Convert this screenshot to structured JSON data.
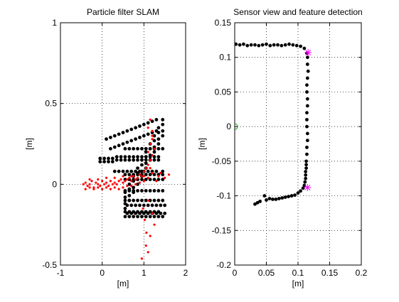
{
  "figure": {
    "background": "#ffffff"
  },
  "chart_data": [
    {
      "type": "scatter",
      "title": "Particle filter SLAM",
      "xlabel": "[m]",
      "ylabel": "[m]",
      "xlim": [
        -1,
        2
      ],
      "ylim": [
        -0.5,
        1
      ],
      "xticks": [
        -1,
        0,
        1,
        2
      ],
      "xtick_labels": [
        "-1",
        "0",
        "1",
        "2"
      ],
      "yticks": [
        -0.5,
        0,
        0.5,
        1
      ],
      "ytick_labels": [
        "-0.5",
        "0",
        "0.5",
        "1"
      ],
      "grid": true,
      "series": [
        {
          "kind": "map-points",
          "color": "#000000",
          "marker": "dot",
          "x": [
            -0.05,
            0.05,
            0.15,
            0.25,
            0.35,
            0.45,
            0.55,
            0.65,
            0.75,
            0.85,
            0.95,
            1.05,
            1.15,
            1.25,
            1.35,
            -0.05,
            0.05,
            0.15,
            0.25,
            0.35,
            0.45,
            0.55,
            0.65,
            0.75,
            0.85,
            0.95,
            1.05,
            1.15,
            1.25,
            1.35,
            0.1,
            0.2,
            0.3,
            0.4,
            0.5,
            0.6,
            0.7,
            0.8,
            0.9,
            1.0,
            1.1,
            1.2,
            1.3,
            0.2,
            0.3,
            0.4,
            0.5,
            0.6,
            0.7,
            0.8,
            0.9,
            1.0,
            1.1,
            1.2,
            1.3,
            0.3,
            0.4,
            0.5,
            0.6,
            0.7,
            0.8,
            0.9,
            1.0,
            1.1,
            1.2,
            1.3,
            1.45,
            0.55,
            0.65,
            0.75,
            0.85,
            0.95,
            1.05,
            1.15,
            1.25,
            1.35,
            1.45,
            0.55,
            0.65,
            0.75,
            0.85,
            0.95,
            1.05,
            1.15,
            1.25,
            1.35,
            0.6,
            0.7,
            0.8,
            0.9,
            1.0,
            1.1,
            1.2,
            1.3,
            1.4,
            1.5,
            0.6,
            0.7,
            0.8,
            0.9,
            1.0,
            1.1,
            1.2,
            1.3,
            1.4,
            1.5,
            0.55,
            0.65,
            0.75,
            0.85,
            0.95,
            1.05,
            1.15,
            1.25,
            1.35,
            1.45,
            0.55,
            0.65,
            0.75,
            0.85,
            0.95,
            1.05,
            1.15,
            1.25,
            1.35,
            1.45,
            0.55,
            0.65,
            0.75,
            0.85,
            0.95,
            1.05,
            1.15,
            1.25,
            1.35,
            1.45,
            0.55,
            0.65,
            0.75,
            0.85,
            0.95,
            1.05,
            1.15,
            1.25,
            1.35,
            1.45,
            0.55,
            0.65,
            0.75,
            0.85,
            0.95,
            1.05,
            1.15,
            1.25,
            1.35,
            1.45,
            0.55,
            0.65,
            0.75,
            0.85,
            0.95,
            1.05,
            1.15,
            1.25,
            1.35,
            1.45,
            0.55,
            0.65,
            0.75,
            0.85,
            0.95,
            1.05,
            1.15,
            1.25,
            1.35,
            1.45,
            0.55,
            0.65,
            0.75,
            0.85,
            0.95,
            1.05,
            1.15,
            1.25,
            1.35,
            1.45,
            0.55,
            0.65,
            0.75,
            0.85,
            0.95,
            1.05,
            1.15,
            1.25,
            1.35,
            1.45
          ],
          "y": [
            0.16,
            0.16,
            0.16,
            0.16,
            0.17,
            0.17,
            0.17,
            0.17,
            0.17,
            0.17,
            0.17,
            0.17,
            0.17,
            0.17,
            0.17,
            0.14,
            0.14,
            0.14,
            0.14,
            0.15,
            0.15,
            0.15,
            0.15,
            0.15,
            0.15,
            0.15,
            0.15,
            0.15,
            0.15,
            0.15,
            0.28,
            0.29,
            0.3,
            0.31,
            0.32,
            0.33,
            0.34,
            0.35,
            0.36,
            0.37,
            0.38,
            0.39,
            0.4,
            0.22,
            0.23,
            0.24,
            0.25,
            0.26,
            0.27,
            0.28,
            0.29,
            0.3,
            0.31,
            0.32,
            0.33,
            0.08,
            0.08,
            0.08,
            0.08,
            0.08,
            0.08,
            0.08,
            0.08,
            0.08,
            0.08,
            0.08,
            0.08,
            -0.1,
            -0.1,
            -0.1,
            -0.1,
            -0.1,
            -0.1,
            -0.1,
            -0.1,
            -0.1,
            -0.1,
            -0.17,
            -0.17,
            -0.17,
            -0.17,
            -0.17,
            -0.17,
            -0.17,
            -0.17,
            -0.17,
            -0.13,
            -0.13,
            -0.13,
            -0.13,
            -0.13,
            -0.13,
            -0.13,
            -0.13,
            -0.13,
            -0.13,
            -0.18,
            -0.18,
            -0.18,
            -0.18,
            -0.18,
            -0.18,
            -0.18,
            -0.18,
            -0.18,
            -0.18,
            -0.05,
            0.0,
            0.05,
            0.1,
            0.15,
            0.2,
            0.25,
            0.3,
            0.35,
            0.4,
            -0.08,
            -0.03,
            0.02,
            0.07,
            0.12,
            0.17,
            0.22,
            0.27,
            0.32,
            0.37,
            -0.12,
            -0.07,
            -0.02,
            0.03,
            0.08,
            0.13,
            0.18,
            0.23,
            0.28,
            0.33,
            -0.15,
            -0.1,
            -0.05,
            0.0,
            0.05,
            0.1,
            0.15,
            0.2,
            0.25,
            0.3,
            0.03,
            0.03,
            0.03,
            0.03,
            0.03,
            0.03,
            0.03,
            0.03,
            0.03,
            0.03,
            0.06,
            0.06,
            0.06,
            0.06,
            0.06,
            0.06,
            0.06,
            0.06,
            0.06,
            0.06,
            -0.04,
            -0.04,
            -0.04,
            -0.04,
            -0.04,
            -0.04,
            -0.04,
            -0.04,
            -0.04,
            -0.04,
            0.22,
            0.22,
            0.22,
            0.22,
            0.22,
            0.22,
            0.22,
            0.22,
            0.22,
            0.22,
            -0.2,
            -0.2,
            -0.2,
            -0.2,
            -0.2,
            -0.2,
            -0.2,
            -0.2,
            -0.2,
            -0.2
          ]
        },
        {
          "kind": "particles",
          "color": "#ff0000",
          "marker": "dot",
          "x": [
            -0.45,
            -0.4,
            -0.35,
            -0.3,
            -0.25,
            -0.2,
            -0.15,
            -0.1,
            -0.05,
            0.0,
            0.05,
            0.1,
            0.15,
            0.2,
            0.25,
            0.3,
            0.35,
            0.4,
            0.45,
            0.5,
            0.55,
            0.6,
            0.65,
            0.7,
            0.75,
            0.8,
            0.85,
            0.9,
            0.95,
            1.0,
            1.05,
            1.1,
            1.15,
            1.2,
            -0.4,
            -0.3,
            -0.2,
            -0.1,
            0.0,
            0.1,
            0.2,
            0.3,
            0.4,
            0.5,
            0.6,
            0.7,
            0.8,
            0.9,
            1.0,
            1.1,
            1.2,
            -0.3,
            -0.1,
            0.1,
            0.3,
            0.5,
            0.7,
            0.9,
            1.1,
            1.15,
            1.2,
            1.1,
            1.15,
            1.2,
            1.25,
            1.15,
            1.2,
            1.1,
            1.2,
            1.25,
            1.15,
            1.05,
            1.1,
            0.95,
            1.0,
            1.3,
            1.35,
            1.4,
            1.5,
            1.6,
            0.98,
            1.02,
            1.06
          ],
          "y": [
            0.0,
            0.01,
            -0.01,
            0.0,
            0.02,
            -0.02,
            0.01,
            0.0,
            -0.01,
            0.02,
            0.0,
            0.01,
            -0.01,
            0.02,
            0.0,
            0.01,
            0.0,
            0.02,
            0.03,
            0.01,
            0.02,
            0.03,
            0.04,
            0.02,
            0.05,
            0.03,
            0.04,
            0.06,
            0.05,
            0.08,
            0.1,
            0.12,
            0.15,
            0.18,
            -0.03,
            -0.02,
            -0.03,
            -0.02,
            -0.03,
            -0.02,
            -0.03,
            -0.02,
            -0.03,
            -0.02,
            -0.01,
            -0.01,
            0.0,
            0.01,
            0.02,
            0.04,
            0.07,
            0.03,
            0.03,
            0.04,
            0.04,
            0.05,
            0.05,
            0.06,
            0.2,
            0.25,
            0.3,
            0.35,
            0.4,
            0.28,
            0.22,
            0.1,
            0.33,
            -0.1,
            -0.18,
            -0.25,
            -0.32,
            -0.38,
            -0.42,
            -0.46,
            0.05,
            0.02,
            0.05,
            0.07,
            0.04,
            0.06,
            -0.15,
            -0.22,
            -0.3
          ]
        }
      ]
    },
    {
      "type": "scatter",
      "title": "Sensor view and feature detection",
      "xlabel": "[m]",
      "ylabel": "[m]",
      "xlim": [
        0,
        0.2
      ],
      "ylim": [
        -0.2,
        0.15
      ],
      "xticks": [
        0,
        0.05,
        0.1,
        0.15,
        0.2
      ],
      "xtick_labels": [
        "0",
        "0.05",
        "0.1",
        "0.15",
        "0.2"
      ],
      "yticks": [
        -0.2,
        -0.15,
        -0.1,
        -0.05,
        0,
        0.05,
        0.1,
        0.15
      ],
      "ytick_labels": [
        "-0.2",
        "-0.15",
        "-0.1",
        "-0.05",
        "0",
        "0.05",
        "0.1",
        "0.15"
      ],
      "grid": true,
      "series": [
        {
          "kind": "scan-points",
          "color": "#000000",
          "marker": "dot",
          "x": [
            0.002,
            0.008,
            0.014,
            0.02,
            0.026,
            0.032,
            0.038,
            0.044,
            0.05,
            0.056,
            0.062,
            0.068,
            0.074,
            0.08,
            0.086,
            0.092,
            0.098,
            0.104,
            0.11,
            0.114,
            0.115,
            0.115,
            0.116,
            0.115,
            0.114,
            0.114,
            0.115,
            0.115,
            0.114,
            0.114,
            0.114,
            0.115,
            0.115,
            0.114,
            0.114,
            0.113,
            0.113,
            0.113,
            0.112,
            0.112,
            0.112,
            0.111,
            0.11,
            0.108,
            0.104,
            0.1,
            0.095,
            0.09,
            0.085,
            0.08,
            0.075,
            0.07,
            0.065,
            0.06,
            0.055,
            0.05,
            0.047,
            0.04,
            0.036,
            0.032
          ],
          "y": [
            0.119,
            0.118,
            0.119,
            0.117,
            0.118,
            0.118,
            0.117,
            0.118,
            0.119,
            0.117,
            0.118,
            0.118,
            0.117,
            0.118,
            0.119,
            0.118,
            0.117,
            0.116,
            0.113,
            0.106,
            0.1,
            0.09,
            0.08,
            0.07,
            0.06,
            0.05,
            0.04,
            0.03,
            0.02,
            0.01,
            0.0,
            -0.01,
            -0.02,
            -0.03,
            -0.04,
            -0.05,
            -0.055,
            -0.06,
            -0.065,
            -0.07,
            -0.075,
            -0.08,
            -0.085,
            -0.089,
            -0.093,
            -0.096,
            -0.099,
            -0.1,
            -0.101,
            -0.102,
            -0.103,
            -0.104,
            -0.105,
            -0.105,
            -0.104,
            -0.106,
            -0.1,
            -0.108,
            -0.11,
            -0.112
          ]
        },
        {
          "kind": "features",
          "color": "#ff00ff",
          "marker": "star",
          "x": [
            0.116,
            0.115
          ],
          "y": [
            0.107,
            -0.088
          ]
        },
        {
          "kind": "sensor-origin",
          "color": "#00a000",
          "marker": "circle",
          "x": [
            0
          ],
          "y": [
            0
          ]
        }
      ]
    }
  ]
}
